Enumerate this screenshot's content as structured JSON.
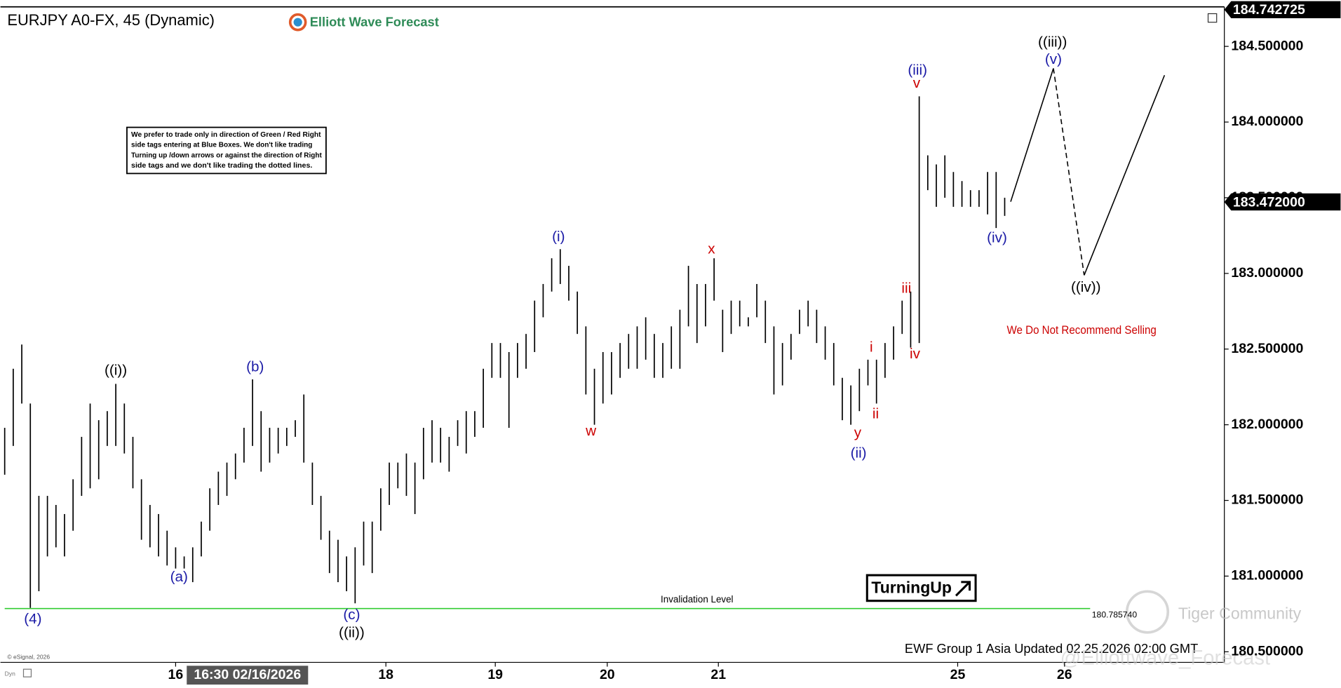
{
  "chart_data": {
    "type": "ohlc",
    "title": "EURJPY A0-FX, 45 (Dynamic)",
    "brand": "Elliott Wave Forecast",
    "note": [
      "We prefer to trade only in direction of Green / Red Right",
      "side tags entering at Blue Boxes. We don't like trading",
      "Turning up /down arrows or against the direction of Right",
      "side tags and we don't like trading the dotted lines."
    ],
    "warning": "We Do Not Recommend Selling",
    "signal": "TurningUp",
    "updated": "EWF Group 1 Asia Updated 02.25.2026 02:00 GMT",
    "copyright": "© eSignal, 2026",
    "mode": "Dyn",
    "watermarks": [
      "Tiger Community",
      "@Elliottwave_Forecast"
    ],
    "crosshair_label": "16:30 02/16/2026",
    "color": "#000000",
    "x": [
      0,
      1,
      2,
      3,
      4,
      5,
      6,
      7,
      8,
      9,
      10,
      11,
      12,
      13,
      14,
      15,
      16,
      17,
      18,
      19,
      20,
      21,
      22,
      23,
      24,
      25,
      26,
      27,
      28,
      29,
      30,
      31,
      32,
      33,
      34,
      35,
      36,
      37,
      38,
      39,
      40,
      41,
      42,
      43,
      44,
      45,
      46,
      47,
      48,
      49,
      50,
      51,
      52,
      53,
      54,
      55,
      56,
      57,
      58,
      59,
      60,
      61,
      62,
      63,
      64,
      65,
      66,
      67,
      68,
      69,
      70,
      71,
      72,
      73,
      74,
      75,
      76,
      77,
      78,
      79,
      80,
      81,
      82,
      83,
      84,
      85,
      86,
      87,
      88,
      89,
      90,
      91,
      92,
      93,
      94,
      95,
      96,
      97,
      98,
      99,
      100,
      101,
      102,
      103,
      104,
      105,
      106,
      107,
      108,
      109,
      110,
      111,
      112,
      113,
      114,
      115,
      116,
      117
    ],
    "high": [
      181.98,
      182.37,
      182.53,
      182.14,
      181.53,
      181.53,
      181.47,
      181.41,
      181.64,
      181.92,
      182.14,
      182.03,
      182.09,
      182.27,
      182.14,
      181.92,
      181.64,
      181.47,
      181.41,
      181.3,
      181.19,
      181.13,
      181.19,
      181.36,
      181.58,
      181.69,
      181.75,
      181.81,
      181.98,
      182.3,
      182.09,
      181.98,
      181.98,
      181.98,
      182.03,
      182.2,
      181.75,
      181.53,
      181.3,
      181.24,
      181.13,
      181.19,
      181.36,
      181.36,
      181.58,
      181.75,
      181.75,
      181.81,
      181.75,
      181.98,
      182.03,
      181.98,
      181.92,
      182.03,
      182.09,
      182.09,
      182.37,
      182.54,
      182.54,
      182.48,
      182.54,
      182.6,
      182.82,
      182.93,
      183.1,
      183.16,
      183.05,
      182.88,
      182.65,
      182.37,
      182.48,
      182.48,
      182.54,
      182.6,
      182.65,
      182.71,
      182.6,
      182.54,
      182.65,
      182.76,
      183.05,
      182.93,
      182.93,
      183.1,
      182.76,
      182.82,
      182.82,
      182.71,
      182.93,
      182.82,
      182.65,
      182.54,
      182.6,
      182.76,
      182.82,
      182.76,
      182.65,
      182.54,
      182.31,
      182.26,
      182.37,
      182.43,
      182.43,
      182.54,
      182.65,
      182.82,
      182.88,
      184.17,
      183.78,
      183.72,
      183.78,
      183.67,
      183.61,
      183.55,
      183.55,
      183.67,
      183.67,
      183.5
    ],
    "low": [
      181.67,
      181.86,
      182.14,
      180.79,
      180.9,
      181.13,
      181.19,
      181.13,
      181.3,
      181.53,
      181.58,
      181.64,
      181.86,
      181.86,
      181.81,
      181.58,
      181.24,
      181.19,
      181.13,
      181.07,
      181.05,
      181.05,
      180.96,
      181.13,
      181.3,
      181.47,
      181.53,
      181.64,
      181.75,
      181.86,
      181.69,
      181.75,
      181.81,
      181.86,
      181.92,
      181.75,
      181.47,
      181.24,
      181.02,
      180.96,
      180.9,
      180.82,
      181.07,
      181.02,
      181.3,
      181.47,
      181.58,
      181.53,
      181.41,
      181.64,
      181.75,
      181.75,
      181.69,
      181.86,
      181.81,
      181.92,
      181.98,
      182.31,
      182.31,
      181.98,
      182.31,
      182.37,
      182.48,
      182.71,
      182.88,
      182.93,
      182.82,
      182.6,
      182.2,
      182.0,
      182.14,
      182.2,
      182.31,
      182.37,
      182.37,
      182.43,
      182.31,
      182.31,
      182.37,
      182.37,
      182.65,
      182.54,
      182.65,
      182.82,
      182.48,
      182.6,
      182.65,
      182.65,
      182.71,
      182.54,
      182.2,
      182.26,
      182.43,
      182.6,
      182.65,
      182.54,
      182.43,
      182.26,
      182.03,
      182.0,
      182.09,
      182.26,
      182.14,
      182.31,
      182.43,
      182.6,
      182.51,
      182.54,
      183.55,
      183.44,
      183.5,
      183.44,
      183.44,
      183.44,
      183.44,
      183.39,
      183.3,
      183.38
    ],
    "xlim": [
      -0.5,
      142.5
    ],
    "xticks": [
      {
        "value": 20,
        "label": "16"
      },
      {
        "value": 44.6,
        "label": "18"
      },
      {
        "value": 57.4,
        "label": "19"
      },
      {
        "value": 70.5,
        "label": "20"
      },
      {
        "value": 83.5,
        "label": "21"
      },
      {
        "value": 111.5,
        "label": "25"
      },
      {
        "value": 124,
        "label": "26"
      }
    ],
    "ylim": [
      180.43,
      184.75
    ],
    "yticks": [
      {
        "value": 184.5,
        "label": "184.500000"
      },
      {
        "value": 184,
        "label": "184.000000"
      },
      {
        "value": 183.5,
        "label": "183.500000"
      },
      {
        "value": 183,
        "label": "183.000000"
      },
      {
        "value": 182.5,
        "label": "182.500000"
      },
      {
        "value": 182,
        "label": "182.000000"
      },
      {
        "value": 181.5,
        "label": "181.500000"
      },
      {
        "value": 181,
        "label": "181.000000"
      },
      {
        "value": 180.5,
        "label": "180.500000"
      }
    ],
    "price_markers": [
      {
        "value": 184.742725,
        "label": "184.742725"
      },
      {
        "value": 183.472,
        "label": "183.472000"
      }
    ],
    "invalidation": {
      "label": "Invalidation Level",
      "value": 180.78574,
      "value_label": "180.785740",
      "color": "#33cc33"
    },
    "annotations": [
      {
        "text": "(4)",
        "color": "#1a1aa6"
      },
      {
        "text": "((i))",
        "color": "#000000"
      },
      {
        "text": "(a)",
        "color": "#1a1aa6"
      },
      {
        "text": "(b)",
        "color": "#1a1aa6"
      },
      {
        "text": "(c)",
        "color": "#1a1aa6"
      },
      {
        "text": "((ii))",
        "color": "#000000"
      },
      {
        "text": "(i)",
        "color": "#1a1aa6"
      },
      {
        "text": "w",
        "color": "#cc0000"
      },
      {
        "text": "x",
        "color": "#cc0000"
      },
      {
        "text": "y",
        "color": "#cc0000"
      },
      {
        "text": "(ii)",
        "color": "#1a1aa6"
      },
      {
        "text": "i",
        "color": "#cc0000"
      },
      {
        "text": "ii",
        "color": "#cc0000"
      },
      {
        "text": "iii",
        "color": "#cc0000"
      },
      {
        "text": "iv",
        "color": "#cc0000"
      },
      {
        "text": "v",
        "color": "#cc0000"
      },
      {
        "text": "(iii)",
        "color": "#1a1aa6"
      },
      {
        "text": "(iv)",
        "color": "#1a1aa6"
      },
      {
        "text": "((iii))",
        "color": "#000000"
      },
      {
        "text": "(v)",
        "color": "#1a1aa6"
      },
      {
        "text": "((iv))",
        "color": "#000000"
      }
    ]
  }
}
